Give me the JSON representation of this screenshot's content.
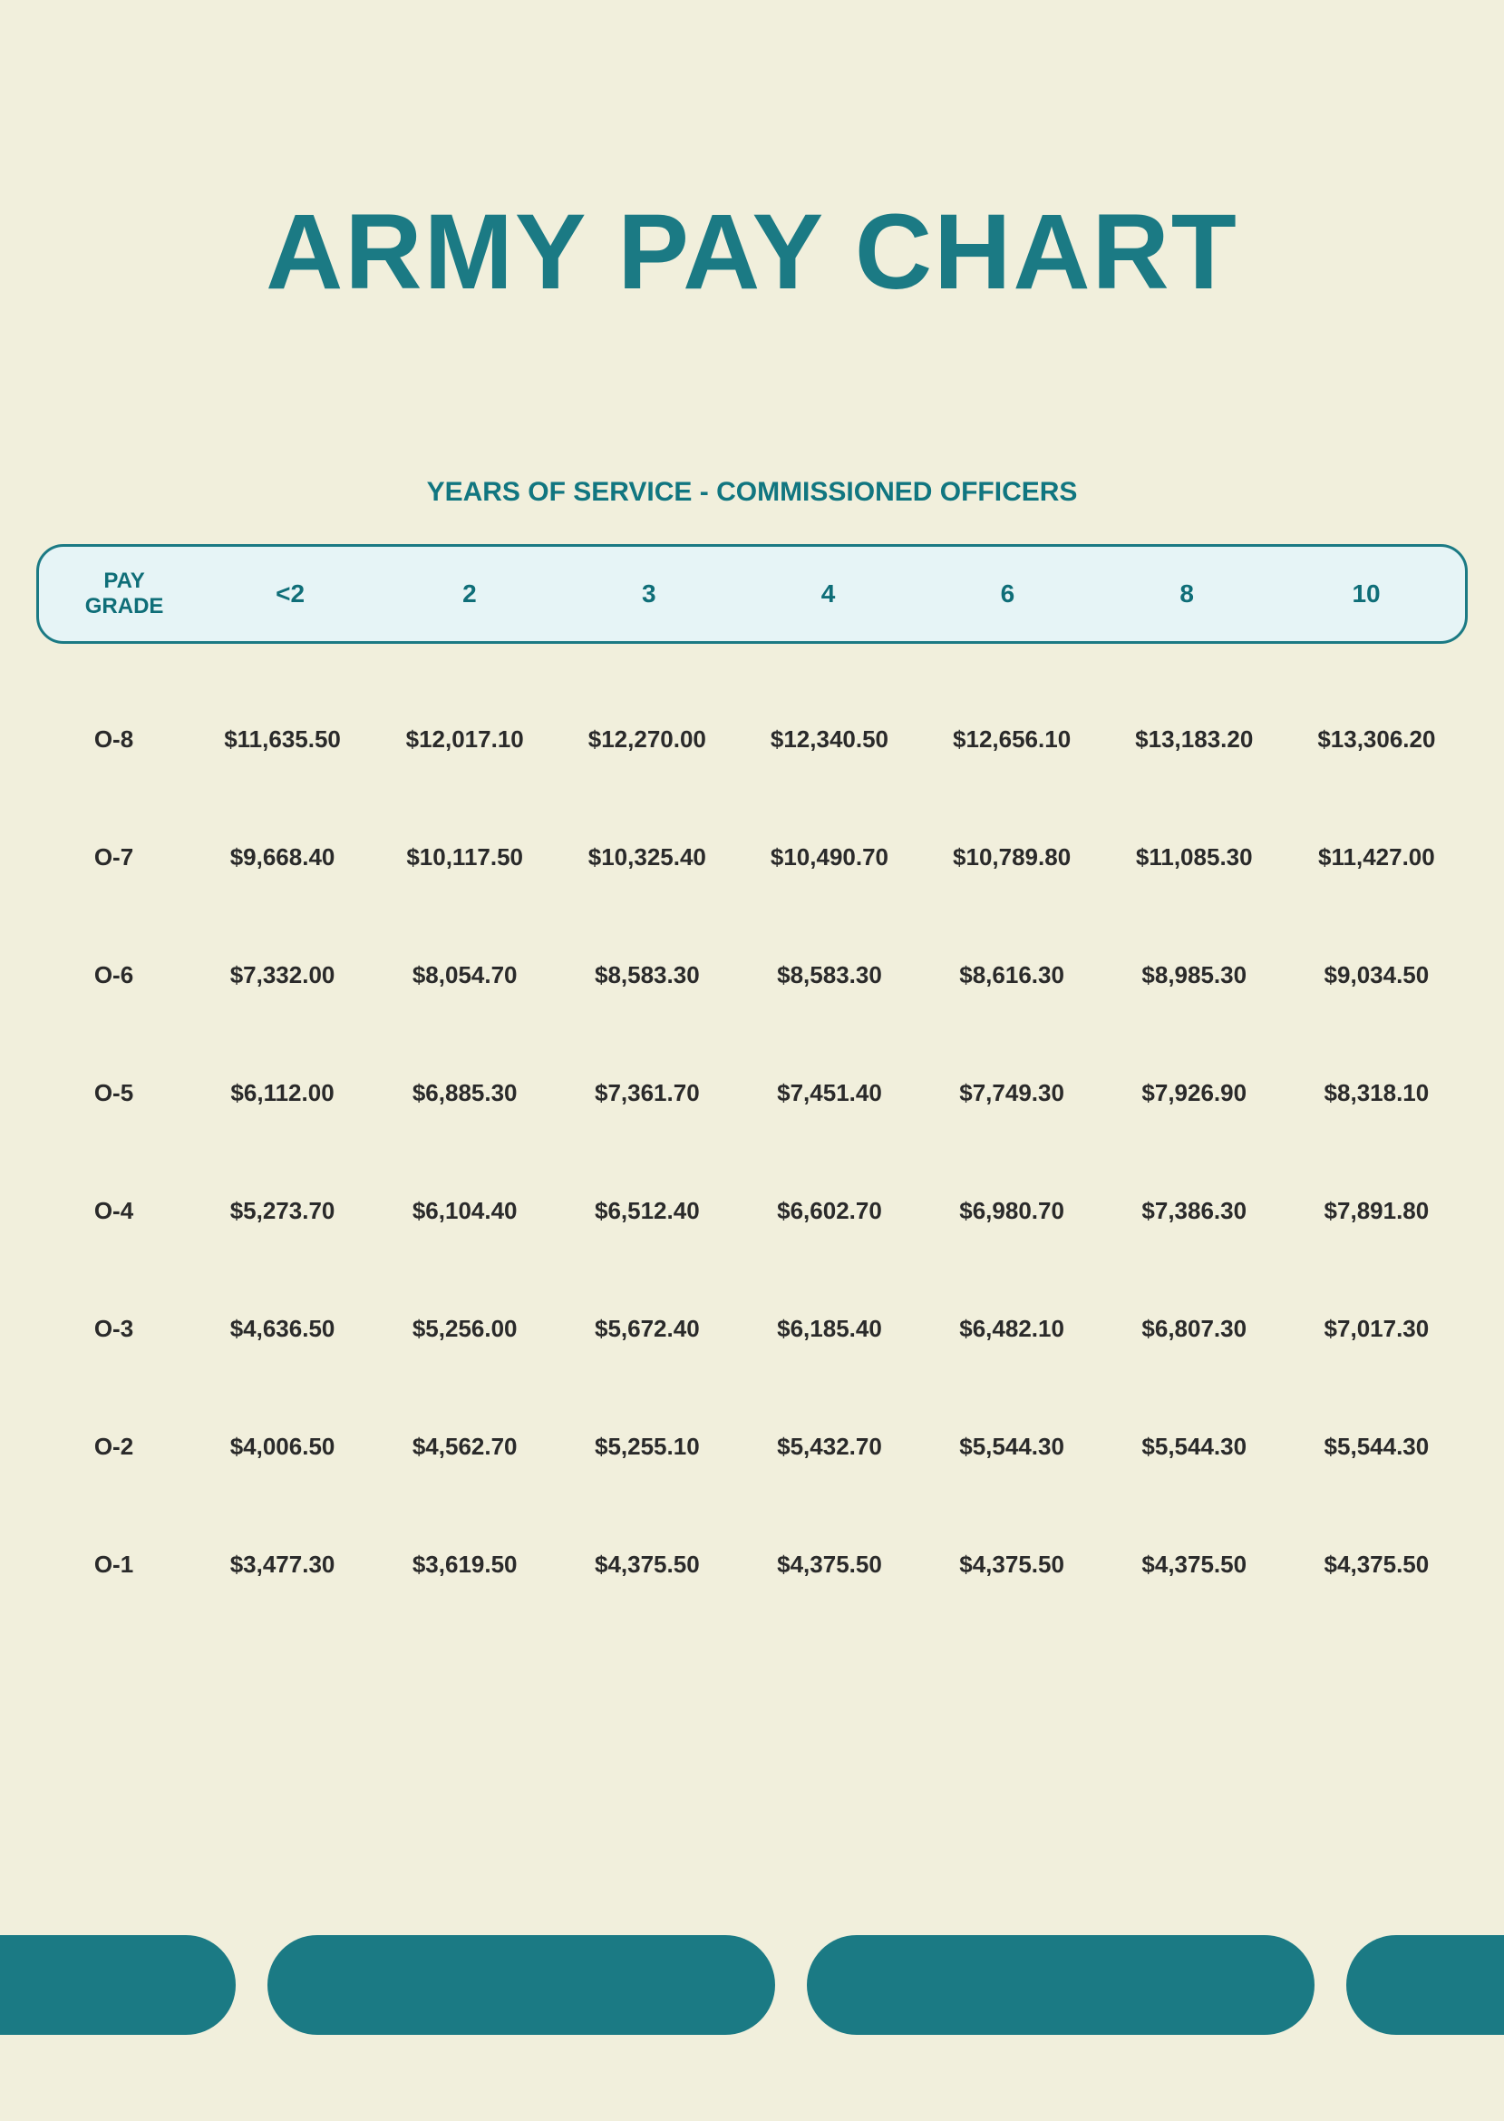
{
  "page": {
    "title": "ARMY PAY CHART",
    "subtitle": "YEARS OF SERVICE - COMMISSIONED OFFICERS",
    "background_color": "#f1efdc",
    "accent_color": "#1b7a84",
    "header_bg": "#e6f4f6",
    "text_color": "#2a2a2a",
    "title_fontsize": 118,
    "subtitle_fontsize": 30,
    "cell_fontsize": 26
  },
  "table": {
    "type": "table",
    "header_label": "PAY\nGRADE",
    "columns": [
      "<2",
      "2",
      "3",
      "4",
      "6",
      "8",
      "10"
    ],
    "rows": [
      {
        "grade": "O-8",
        "values": [
          "$11,635.50",
          "$12,017.10",
          "$12,270.00",
          "$12,340.50",
          "$12,656.10",
          "$13,183.20",
          "$13,306.20"
        ]
      },
      {
        "grade": "O-7",
        "values": [
          "$9,668.40",
          "$10,117.50",
          "$10,325.40",
          "$10,490.70",
          "$10,789.80",
          "$11,085.30",
          "$11,427.00"
        ]
      },
      {
        "grade": "O-6",
        "values": [
          "$7,332.00",
          "$8,054.70",
          "$8,583.30",
          "$8,583.30",
          "$8,616.30",
          "$8,985.30",
          "$9,034.50"
        ]
      },
      {
        "grade": "O-5",
        "values": [
          "$6,112.00",
          "$6,885.30",
          "$7,361.70",
          "$7,451.40",
          "$7,749.30",
          "$7,926.90",
          "$8,318.10"
        ]
      },
      {
        "grade": "O-4",
        "values": [
          "$5,273.70",
          "$6,104.40",
          "$6,512.40",
          "$6,602.70",
          "$6,980.70",
          "$7,386.30",
          "$7,891.80"
        ]
      },
      {
        "grade": "O-3",
        "values": [
          "$4,636.50",
          "$5,256.00",
          "$5,672.40",
          "$6,185.40",
          "$6,482.10",
          "$6,807.30",
          "$7,017.30"
        ]
      },
      {
        "grade": "O-2",
        "values": [
          "$4,006.50",
          "$4,562.70",
          "$5,255.10",
          "$5,432.70",
          "$5,544.30",
          "$5,544.30",
          "$5,544.30"
        ]
      },
      {
        "grade": "O-1",
        "values": [
          "$3,477.30",
          "$3,619.50",
          "$4,375.50",
          "$4,375.50",
          "$4,375.50",
          "$4,375.50",
          "$4,375.50"
        ]
      }
    ]
  },
  "footer": {
    "bars": 4,
    "bar_color": "#1b7a84"
  }
}
